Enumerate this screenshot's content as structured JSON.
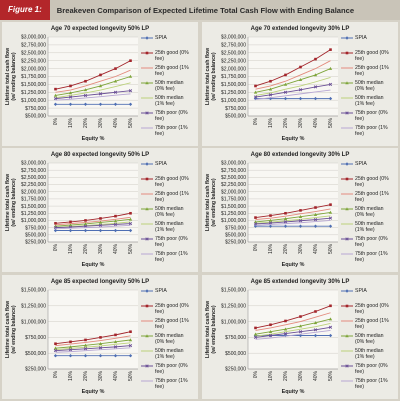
{
  "header": {
    "figure_label": "Figure 1:",
    "title": "Breakeven Comparison of Expected Lifetime Total Cash Flow with Ending Balance"
  },
  "chart_data": [
    {
      "type": "line",
      "title": "Age 70 expected longevity 50% LP",
      "x_label": "Equity %",
      "y_label": [
        "Lifetime total cash flow",
        "(w/ ending balance)"
      ],
      "categories": [
        "0%",
        "10%",
        "20%",
        "30%",
        "40%",
        "50%"
      ],
      "grid": true,
      "legend": "right",
      "ylim": [
        500000,
        3000000
      ],
      "yticks": [
        {
          "value": 500000,
          "label": "$500,000"
        },
        {
          "value": 750000,
          "label": "$750,000"
        },
        {
          "value": 1000000,
          "label": "$1,000,000"
        },
        {
          "value": 1250000,
          "label": "$1,250,000"
        },
        {
          "value": 1500000,
          "label": "$1,500,000"
        },
        {
          "value": 1750000,
          "label": "$1,750,000"
        },
        {
          "value": 2000000,
          "label": "$2,000,000"
        },
        {
          "value": 2250000,
          "label": "$2,250,000"
        },
        {
          "value": 2500000,
          "label": "$2,500,000"
        },
        {
          "value": 2750000,
          "label": "$2,750,000"
        },
        {
          "value": 3000000,
          "label": "$3,000,000"
        }
      ],
      "series": [
        {
          "name": "SPIA",
          "color": "#4f6fb3",
          "marker": "diamond",
          "values": [
            870000,
            870000,
            870000,
            870000,
            870000,
            870000
          ]
        },
        {
          "name": "25th good (0% fee)",
          "color": "#a3252b",
          "marker": "square",
          "values": [
            1350000,
            1450000,
            1600000,
            1800000,
            2000000,
            2250000
          ]
        },
        {
          "name": "25th good (1% fee)",
          "color": "#e38b7e",
          "marker": "none",
          "values": [
            1250000,
            1320000,
            1450000,
            1600000,
            1750000,
            1950000
          ]
        },
        {
          "name": "50th median (0% fee)",
          "color": "#7ea53a",
          "marker": "triangle",
          "values": [
            1150000,
            1230000,
            1330000,
            1450000,
            1600000,
            1750000
          ]
        },
        {
          "name": "50th median (1% fee)",
          "color": "#bcd27c",
          "marker": "none",
          "values": [
            1080000,
            1150000,
            1230000,
            1320000,
            1430000,
            1550000
          ]
        },
        {
          "name": "75th poor (0% fee)",
          "color": "#6a4f96",
          "marker": "x",
          "values": [
            1050000,
            1100000,
            1150000,
            1200000,
            1250000,
            1300000
          ]
        },
        {
          "name": "75th poor (1% fee)",
          "color": "#b7a7d3",
          "marker": "none",
          "values": [
            1000000,
            1030000,
            1070000,
            1110000,
            1160000,
            1200000
          ]
        }
      ]
    },
    {
      "type": "line",
      "title": "Age 70 extended longevity 30% LP",
      "x_label": "Equity %",
      "y_label": [
        "Lifetime total cash flow",
        "(w/ ending balance)"
      ],
      "categories": [
        "0%",
        "10%",
        "20%",
        "30%",
        "40%",
        "50%"
      ],
      "grid": true,
      "legend": "right",
      "ylim": [
        500000,
        3000000
      ],
      "yticks": [
        {
          "value": 500000,
          "label": "$500,000"
        },
        {
          "value": 750000,
          "label": "$750,000"
        },
        {
          "value": 1000000,
          "label": "$1,000,000"
        },
        {
          "value": 1250000,
          "label": "$1,250,000"
        },
        {
          "value": 1500000,
          "label": "$1,500,000"
        },
        {
          "value": 1750000,
          "label": "$1,750,000"
        },
        {
          "value": 2000000,
          "label": "$2,000,000"
        },
        {
          "value": 2250000,
          "label": "$2,250,000"
        },
        {
          "value": 2500000,
          "label": "$2,500,000"
        },
        {
          "value": 2750000,
          "label": "$2,750,000"
        },
        {
          "value": 3000000,
          "label": "$3,000,000"
        }
      ],
      "series": [
        {
          "name": "SPIA",
          "color": "#4f6fb3",
          "marker": "diamond",
          "values": [
            1050000,
            1050000,
            1050000,
            1050000,
            1050000,
            1050000
          ]
        },
        {
          "name": "25th good (0% fee)",
          "color": "#a3252b",
          "marker": "square",
          "values": [
            1450000,
            1600000,
            1800000,
            2050000,
            2300000,
            2600000
          ]
        },
        {
          "name": "25th good (1% fee)",
          "color": "#e38b7e",
          "marker": "none",
          "values": [
            1350000,
            1450000,
            1600000,
            1800000,
            2000000,
            2250000
          ]
        },
        {
          "name": "50th median (0% fee)",
          "color": "#7ea53a",
          "marker": "triangle",
          "values": [
            1250000,
            1350000,
            1500000,
            1650000,
            1800000,
            2000000
          ]
        },
        {
          "name": "50th median (1% fee)",
          "color": "#bcd27c",
          "marker": "none",
          "values": [
            1150000,
            1230000,
            1350000,
            1450000,
            1580000,
            1720000
          ]
        },
        {
          "name": "75th poor (0% fee)",
          "color": "#6a4f96",
          "marker": "x",
          "values": [
            1100000,
            1170000,
            1250000,
            1330000,
            1420000,
            1500000
          ]
        },
        {
          "name": "75th poor (1% fee)",
          "color": "#b7a7d3",
          "marker": "none",
          "values": [
            1020000,
            1080000,
            1140000,
            1200000,
            1260000,
            1320000
          ]
        }
      ]
    },
    {
      "type": "line",
      "title": "Age 80 expected longevity 50% LP",
      "x_label": "Equity %",
      "y_label": [
        "Lifetime total cash flow",
        "(w/ ending balance)"
      ],
      "categories": [
        "0%",
        "10%",
        "20%",
        "30%",
        "40%",
        "50%"
      ],
      "grid": true,
      "legend": "right",
      "ylim": [
        250000,
        3000000
      ],
      "yticks": [
        {
          "value": 250000,
          "label": "$250,000"
        },
        {
          "value": 500000,
          "label": "$500,000"
        },
        {
          "value": 750000,
          "label": "$750,000"
        },
        {
          "value": 1000000,
          "label": "$1,000,000"
        },
        {
          "value": 1250000,
          "label": "$1,250,000"
        },
        {
          "value": 1500000,
          "label": "$1,500,000"
        },
        {
          "value": 1750000,
          "label": "$1,750,000"
        },
        {
          "value": 2000000,
          "label": "$2,000,000"
        },
        {
          "value": 2250000,
          "label": "$2,250,000"
        },
        {
          "value": 2500000,
          "label": "$2,500,000"
        },
        {
          "value": 2750000,
          "label": "$2,750,000"
        },
        {
          "value": 3000000,
          "label": "$3,000,000"
        }
      ],
      "series": [
        {
          "name": "SPIA",
          "color": "#4f6fb3",
          "marker": "diamond",
          "values": [
            650000,
            650000,
            650000,
            650000,
            650000,
            650000
          ]
        },
        {
          "name": "25th good (0% fee)",
          "color": "#a3252b",
          "marker": "square",
          "values": [
            900000,
            950000,
            1000000,
            1070000,
            1150000,
            1250000
          ]
        },
        {
          "name": "25th good (1% fee)",
          "color": "#e38b7e",
          "marker": "none",
          "values": [
            850000,
            890000,
            930000,
            980000,
            1040000,
            1110000
          ]
        },
        {
          "name": "50th median (0% fee)",
          "color": "#7ea53a",
          "marker": "triangle",
          "values": [
            800000,
            840000,
            880000,
            930000,
            980000,
            1040000
          ]
        },
        {
          "name": "50th median (1% fee)",
          "color": "#bcd27c",
          "marker": "none",
          "values": [
            760000,
            790000,
            820000,
            860000,
            900000,
            950000
          ]
        },
        {
          "name": "75th poor (0% fee)",
          "color": "#6a4f96",
          "marker": "x",
          "values": [
            750000,
            770000,
            800000,
            830000,
            860000,
            890000
          ]
        },
        {
          "name": "75th poor (1% fee)",
          "color": "#b7a7d3",
          "marker": "none",
          "values": [
            710000,
            730000,
            750000,
            770000,
            800000,
            830000
          ]
        }
      ]
    },
    {
      "type": "line",
      "title": "Age 80 extended longevity 30% LP",
      "x_label": "Equity %",
      "y_label": [
        "Lifetime total cash flow",
        "(w/ ending balance)"
      ],
      "categories": [
        "0%",
        "10%",
        "20%",
        "30%",
        "40%",
        "50%"
      ],
      "grid": true,
      "legend": "right",
      "ylim": [
        250000,
        3000000
      ],
      "yticks": [
        {
          "value": 250000,
          "label": "$250,000"
        },
        {
          "value": 500000,
          "label": "$500,000"
        },
        {
          "value": 750000,
          "label": "$750,000"
        },
        {
          "value": 1000000,
          "label": "$1,000,000"
        },
        {
          "value": 1250000,
          "label": "$1,250,000"
        },
        {
          "value": 1500000,
          "label": "$1,500,000"
        },
        {
          "value": 1750000,
          "label": "$1,750,000"
        },
        {
          "value": 2000000,
          "label": "$2,000,000"
        },
        {
          "value": 2250000,
          "label": "$2,250,000"
        },
        {
          "value": 2500000,
          "label": "$2,500,000"
        },
        {
          "value": 2750000,
          "label": "$2,750,000"
        },
        {
          "value": 3000000,
          "label": "$3,000,000"
        }
      ],
      "series": [
        {
          "name": "SPIA",
          "color": "#4f6fb3",
          "marker": "diamond",
          "values": [
            800000,
            800000,
            800000,
            800000,
            800000,
            800000
          ]
        },
        {
          "name": "25th good (0% fee)",
          "color": "#a3252b",
          "marker": "square",
          "values": [
            1100000,
            1170000,
            1250000,
            1350000,
            1450000,
            1550000
          ]
        },
        {
          "name": "25th good (1% fee)",
          "color": "#e38b7e",
          "marker": "none",
          "values": [
            1030000,
            1080000,
            1150000,
            1230000,
            1310000,
            1400000
          ]
        },
        {
          "name": "50th median (0% fee)",
          "color": "#7ea53a",
          "marker": "triangle",
          "values": [
            950000,
            1000000,
            1060000,
            1130000,
            1200000,
            1280000
          ]
        },
        {
          "name": "50th median (1% fee)",
          "color": "#bcd27c",
          "marker": "none",
          "values": [
            900000,
            940000,
            990000,
            1040000,
            1100000,
            1160000
          ]
        },
        {
          "name": "75th poor (0% fee)",
          "color": "#6a4f96",
          "marker": "x",
          "values": [
            880000,
            910000,
            950000,
            990000,
            1030000,
            1080000
          ]
        },
        {
          "name": "75th poor (1% fee)",
          "color": "#b7a7d3",
          "marker": "none",
          "values": [
            830000,
            860000,
            890000,
            920000,
            960000,
            1000000
          ]
        }
      ]
    },
    {
      "type": "line",
      "title": "Age 85 expected longevity 50% LP",
      "x_label": "Equity %",
      "y_label": [
        "Lifetime total cash flow",
        "(w/ ending balance)"
      ],
      "categories": [
        "0%",
        "10%",
        "20%",
        "30%",
        "40%",
        "50%"
      ],
      "grid": true,
      "legend": "right",
      "ylim": [
        250000,
        1500000
      ],
      "yticks": [
        {
          "value": 250000,
          "label": "$250,000"
        },
        {
          "value": 500000,
          "label": "$500,000"
        },
        {
          "value": 750000,
          "label": "$750,000"
        },
        {
          "value": 1000000,
          "label": "$1,000,000"
        },
        {
          "value": 1250000,
          "label": "$1,250,000"
        },
        {
          "value": 1500000,
          "label": "$1,500,000"
        }
      ],
      "series": [
        {
          "name": "SPIA",
          "color": "#4f6fb3",
          "marker": "diamond",
          "values": [
            460000,
            460000,
            460000,
            460000,
            460000,
            460000
          ]
        },
        {
          "name": "25th good (0% fee)",
          "color": "#a3252b",
          "marker": "square",
          "values": [
            650000,
            680000,
            710000,
            750000,
            790000,
            840000
          ]
        },
        {
          "name": "25th good (1% fee)",
          "color": "#e38b7e",
          "marker": "none",
          "values": [
            620000,
            645000,
            670000,
            700000,
            735000,
            775000
          ]
        },
        {
          "name": "50th median (0% fee)",
          "color": "#7ea53a",
          "marker": "triangle",
          "values": [
            580000,
            600000,
            625000,
            650000,
            680000,
            710000
          ]
        },
        {
          "name": "50th median (1% fee)",
          "color": "#bcd27c",
          "marker": "none",
          "values": [
            555000,
            575000,
            595000,
            615000,
            640000,
            665000
          ]
        },
        {
          "name": "75th poor (0% fee)",
          "color": "#6a4f96",
          "marker": "x",
          "values": [
            540000,
            555000,
            570000,
            585000,
            600000,
            620000
          ]
        },
        {
          "name": "75th poor (1% fee)",
          "color": "#b7a7d3",
          "marker": "none",
          "values": [
            515000,
            525000,
            540000,
            555000,
            570000,
            585000
          ]
        }
      ]
    },
    {
      "type": "line",
      "title": "Age 85 extended longevity 30% LP",
      "x_label": "Equity %",
      "y_label": [
        "Lifetime total cash flow",
        "(w/ ending balance)"
      ],
      "categories": [
        "0%",
        "10%",
        "20%",
        "30%",
        "40%",
        "50%"
      ],
      "grid": true,
      "legend": "right",
      "ylim": [
        250000,
        1500000
      ],
      "yticks": [
        {
          "value": 250000,
          "label": "$250,000"
        },
        {
          "value": 500000,
          "label": "$500,000"
        },
        {
          "value": 750000,
          "label": "$750,000"
        },
        {
          "value": 1000000,
          "label": "$1,000,000"
        },
        {
          "value": 1250000,
          "label": "$1,250,000"
        },
        {
          "value": 1500000,
          "label": "$1,500,000"
        }
      ],
      "series": [
        {
          "name": "SPIA",
          "color": "#4f6fb3",
          "marker": "diamond",
          "values": [
            780000,
            780000,
            780000,
            780000,
            780000,
            780000
          ]
        },
        {
          "name": "25th good (0% fee)",
          "color": "#a3252b",
          "marker": "square",
          "values": [
            900000,
            950000,
            1010000,
            1080000,
            1160000,
            1250000
          ]
        },
        {
          "name": "25th good (1% fee)",
          "color": "#e38b7e",
          "marker": "none",
          "values": [
            860000,
            900000,
            950000,
            1000000,
            1070000,
            1140000
          ]
        },
        {
          "name": "50th median (0% fee)",
          "color": "#7ea53a",
          "marker": "triangle",
          "values": [
            800000,
            840000,
            880000,
            930000,
            980000,
            1040000
          ]
        },
        {
          "name": "50th median (1% fee)",
          "color": "#bcd27c",
          "marker": "none",
          "values": [
            770000,
            800000,
            840000,
            880000,
            920000,
            970000
          ]
        },
        {
          "name": "75th poor (0% fee)",
          "color": "#6a4f96",
          "marker": "x",
          "values": [
            750000,
            780000,
            810000,
            840000,
            870000,
            910000
          ]
        },
        {
          "name": "75th poor (1% fee)",
          "color": "#b7a7d3",
          "marker": "none",
          "values": [
            720000,
            740000,
            770000,
            800000,
            830000,
            860000
          ]
        }
      ]
    }
  ]
}
